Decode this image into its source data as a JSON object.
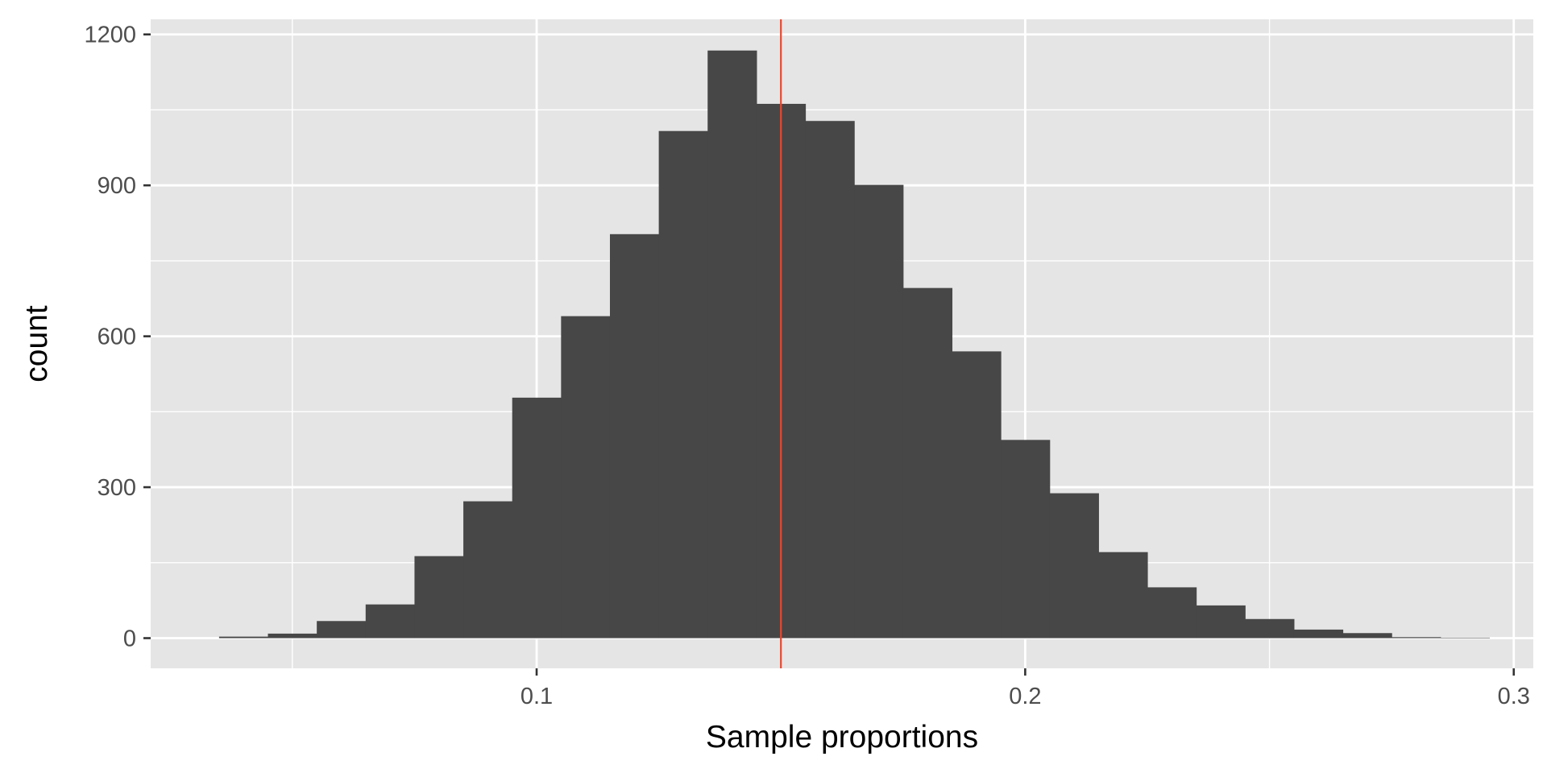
{
  "chart_data": {
    "type": "bar",
    "subtype": "histogram",
    "title": "",
    "xlabel": "Sample proportions",
    "ylabel": "count",
    "xlim": [
      0.021,
      0.304
    ],
    "ylim": [
      -60,
      1230
    ],
    "x_ticks": [
      {
        "value": 0.1,
        "label": "0.1"
      },
      {
        "value": 0.2,
        "label": "0.2"
      },
      {
        "value": 0.3,
        "label": "0.3"
      }
    ],
    "y_ticks": [
      {
        "value": 0,
        "label": "0"
      },
      {
        "value": 300,
        "label": "300"
      },
      {
        "value": 600,
        "label": "600"
      },
      {
        "value": 900,
        "label": "900"
      },
      {
        "value": 1200,
        "label": "1200"
      }
    ],
    "x_minor_gridlines": [
      0.05,
      0.15,
      0.25
    ],
    "y_minor_gridlines": [
      150,
      450,
      750,
      1050
    ],
    "grid": true,
    "bin_width": 0.01,
    "bin_centers": [
      0.04,
      0.05,
      0.06,
      0.07,
      0.08,
      0.09,
      0.1,
      0.11,
      0.12,
      0.13,
      0.14,
      0.15,
      0.16,
      0.17,
      0.18,
      0.19,
      0.2,
      0.21,
      0.22,
      0.23,
      0.24,
      0.25,
      0.26,
      0.27,
      0.28,
      0.29
    ],
    "values": [
      3,
      9,
      34,
      67,
      163,
      272,
      478,
      640,
      803,
      1008,
      1168,
      1062,
      1028,
      901,
      696,
      570,
      394,
      288,
      171,
      101,
      65,
      38,
      17,
      10,
      2,
      1
    ],
    "vline": {
      "x": 0.15,
      "color": "#E24A33"
    },
    "colors": {
      "panel_background": "#E5E5E5",
      "grid": "#FFFFFF",
      "bar_fill": "#474747",
      "tick_text": "#4d4d4d",
      "axis_title": "#000000"
    }
  }
}
